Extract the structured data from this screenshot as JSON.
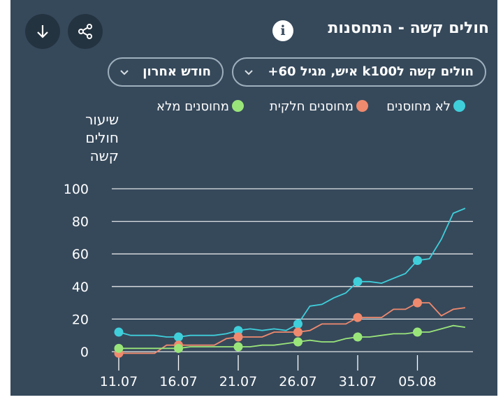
{
  "header": {
    "title": "חולים קשה - התחסנות",
    "info_glyph": "i"
  },
  "filters": {
    "metric_label": "חולים קשה לk100 איש, מגיל 60+",
    "period_label": "חודש אחרון"
  },
  "colors": {
    "background": "#36495b",
    "unvaccinated": "#3fcfdb",
    "partial": "#f08a6e",
    "full": "#9ae57a",
    "grid": "#ffffff"
  },
  "chart_data": {
    "type": "line",
    "ylabel_lines": [
      "שיעור",
      "חולים",
      "קשה"
    ],
    "ylim": [
      0,
      100
    ],
    "yticks": [
      0,
      20,
      40,
      60,
      80,
      100
    ],
    "xticks": [
      "11.07",
      "16.07",
      "21.07",
      "26.07",
      "31.07",
      "05.08"
    ],
    "x": [
      "11.07",
      "12.07",
      "13.07",
      "14.07",
      "15.07",
      "16.07",
      "17.07",
      "18.07",
      "19.07",
      "20.07",
      "21.07",
      "22.07",
      "23.07",
      "24.07",
      "25.07",
      "26.07",
      "27.07",
      "28.07",
      "29.07",
      "30.07",
      "31.07",
      "01.08",
      "02.08",
      "03.08",
      "04.08",
      "05.08",
      "06.08",
      "07.08",
      "08.08",
      "09.08"
    ],
    "legend_position": "top",
    "grid": true,
    "series": [
      {
        "name": "לא מחוסנים",
        "color": "#3fcfdb",
        "marker_dates": [
          "11.07",
          "16.07",
          "21.07",
          "26.07",
          "31.07",
          "05.08"
        ],
        "values": [
          12,
          10,
          10,
          10,
          9,
          9,
          10,
          10,
          10,
          11,
          13,
          14,
          13,
          14,
          13,
          17,
          28,
          29,
          33,
          36,
          43,
          43,
          42,
          45,
          48,
          56,
          57,
          69,
          85,
          88
        ]
      },
      {
        "name": "מחוסנים חלקית",
        "color": "#f08a6e",
        "marker_dates": [
          "11.07",
          "16.07",
          "21.07",
          "26.07",
          "31.07",
          "05.08"
        ],
        "values": [
          -1,
          -1,
          -1,
          -1,
          4,
          4,
          4,
          4,
          4,
          8,
          9,
          9,
          9,
          12,
          12,
          12,
          13,
          17,
          17,
          17,
          21,
          21,
          21,
          26,
          26,
          30,
          30,
          22,
          26,
          27
        ]
      },
      {
        "name": "מחוסנים מלא",
        "color": "#9ae57a",
        "marker_dates": [
          "11.07",
          "16.07",
          "21.07",
          "26.07",
          "31.07",
          "05.08"
        ],
        "values": [
          2,
          2,
          2,
          2,
          2,
          2,
          3,
          3,
          3,
          3,
          3,
          3,
          4,
          4,
          5,
          6,
          7,
          6,
          6,
          8,
          9,
          9,
          10,
          11,
          11,
          12,
          12,
          14,
          16,
          15
        ]
      }
    ]
  }
}
